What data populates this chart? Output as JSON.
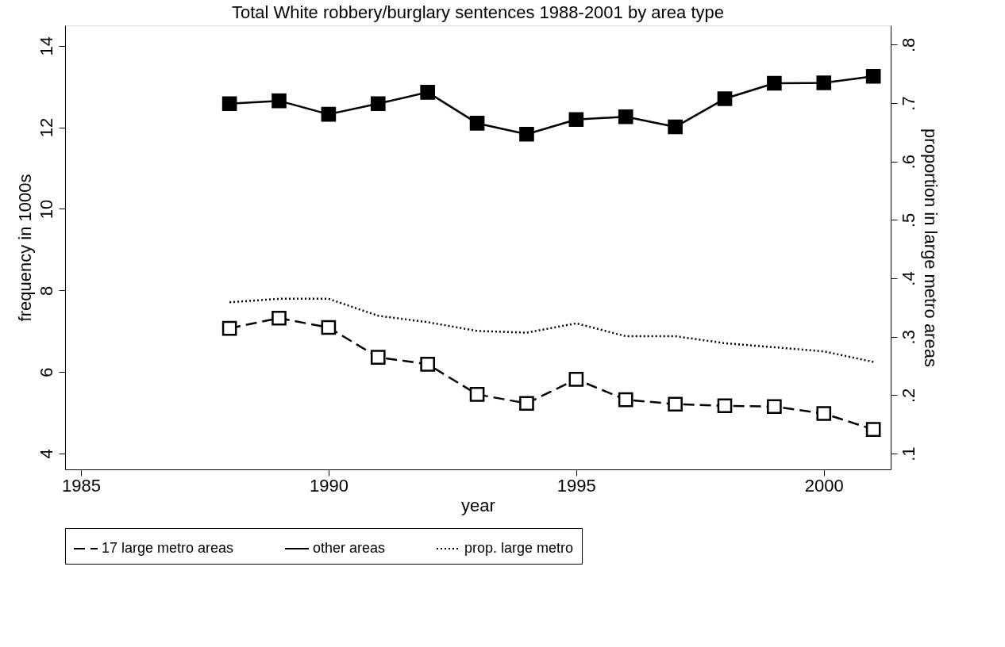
{
  "chart_data": {
    "type": "line",
    "title": "Total White robbery/burglary sentences 1988-2001 by area type",
    "xlabel": "year",
    "ylabel": "frequency in 1000s",
    "y2label": "proportion in large metro areas",
    "x": [
      1988,
      1989,
      1990,
      1991,
      1992,
      1993,
      1994,
      1995,
      1996,
      1997,
      1998,
      1999,
      2000,
      2001
    ],
    "series": [
      {
        "name": "17 large metro areas",
        "color": "#000000",
        "marker": "square",
        "line_style": "dashed",
        "values": [
          7.07,
          7.32,
          7.09,
          6.36,
          6.19,
          5.45,
          5.23,
          5.82,
          5.32,
          5.21,
          5.17,
          5.15,
          4.98,
          4.59
        ]
      },
      {
        "name": "other areas",
        "color": "#000000",
        "marker": "square",
        "line_style": "solid",
        "values": [
          12.58,
          12.65,
          12.32,
          12.58,
          12.86,
          12.1,
          11.83,
          12.19,
          12.26,
          12.01,
          12.7,
          13.08,
          13.09,
          13.25
        ]
      },
      {
        "name": "prop. large metro",
        "color": "#000000",
        "marker": "none",
        "line_style": "dotted",
        "axis": "y2",
        "values": [
          0.359,
          0.365,
          0.365,
          0.336,
          0.325,
          0.31,
          0.307,
          0.323,
          0.301,
          0.301,
          0.289,
          0.282,
          0.275,
          0.257
        ]
      }
    ],
    "xlim": [
      1984.68,
      2001.35
    ],
    "xticks": [
      1985,
      1990,
      1995,
      2000
    ],
    "ylim": [
      3.61,
      14.5
    ],
    "yticks": [
      4,
      6,
      8,
      10,
      12,
      14
    ],
    "y2lim": [
      0.073,
      0.833
    ],
    "y2ticks": [
      {
        "value": 0.1,
        "label": ".1"
      },
      {
        "value": 0.2,
        "label": ".2"
      },
      {
        "value": 0.3,
        "label": ".3"
      },
      {
        "value": 0.4,
        "label": ".4"
      },
      {
        "value": 0.5,
        "label": ".5"
      },
      {
        "value": 0.6,
        "label": ".6"
      },
      {
        "value": 0.7,
        "label": ".7"
      },
      {
        "value": 0.8,
        "label": ".8"
      }
    ],
    "grid": false,
    "legend": "bottom"
  }
}
